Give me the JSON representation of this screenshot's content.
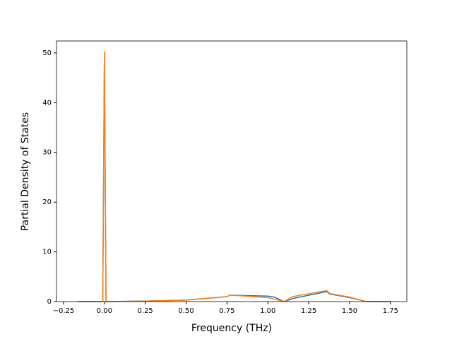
{
  "chart_data": {
    "type": "line",
    "x_label": "Frequency (THz)",
    "y_label": "Partial Density of States",
    "x": [
      -0.165,
      -0.01,
      0.0,
      0.01,
      0.25,
      0.5,
      0.75,
      0.77,
      1.0,
      1.04,
      1.1,
      1.15,
      1.36,
      1.38,
      1.5,
      1.58,
      1.6,
      1.75
    ],
    "series": [
      {
        "color": "#1f77b4",
        "values": [
          0,
          0,
          50.2,
          0,
          0.1,
          0.3,
          1.0,
          1.3,
          1.1,
          0.9,
          0,
          0.6,
          2.0,
          1.5,
          0.8,
          0.2,
          0,
          0
        ]
      },
      {
        "color": "#ff7f0e",
        "values": [
          0,
          0,
          50.2,
          0,
          0.1,
          0.3,
          1.0,
          1.3,
          0.8,
          0.5,
          0,
          1.0,
          2.2,
          1.6,
          0.9,
          0.2,
          0,
          0
        ]
      }
    ],
    "xlim": [
      -0.293,
      1.85
    ],
    "ylim": [
      0,
      52.4
    ],
    "xticks": [
      {
        "value": -0.25,
        "label": "−0.25"
      },
      {
        "value": 0,
        "label": "0.00"
      },
      0.25,
      {
        "value": 0.5,
        "label": "0.50"
      },
      0.75,
      {
        "value": 1,
        "label": "1.00"
      },
      1.25,
      {
        "value": 1.5,
        "label": "1.50"
      },
      1.75
    ],
    "yticks": [
      0,
      10,
      20,
      30,
      40,
      50
    ]
  }
}
